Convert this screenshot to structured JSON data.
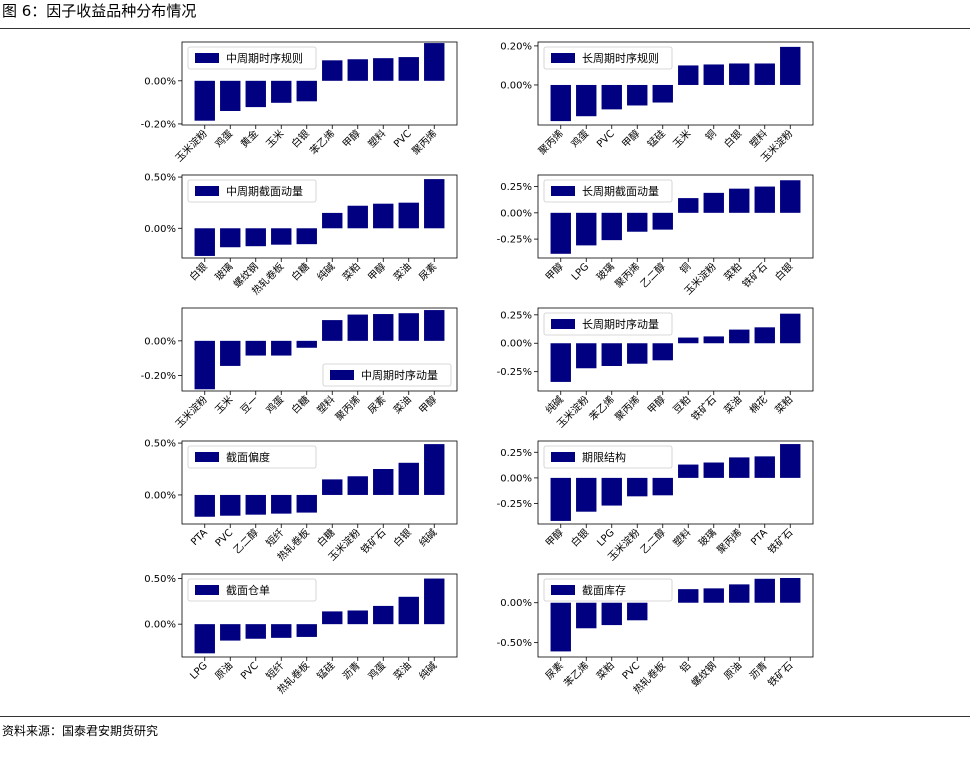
{
  "figure": {
    "title": "图 6：因子收益品种分布情况",
    "source": "资料来源：国泰君安期货研究"
  },
  "colors": {
    "bar": "#000080",
    "axis": "#000000"
  },
  "chart_data": [
    {
      "type": "bar",
      "legend": "中周期时序规则",
      "legend_position": "upper-left",
      "categories": [
        "玉米淀粉",
        "鸡蛋",
        "黄金",
        "玉米",
        "白银",
        "苯乙烯",
        "甲醇",
        "塑料",
        "PVC",
        "聚丙烯"
      ],
      "values": [
        -0.00185,
        -0.0014,
        -0.00122,
        -0.00102,
        -0.00095,
        0.00095,
        0.001,
        0.00105,
        0.0011,
        0.00175
      ],
      "yticks": [
        -0.002,
        0.0
      ],
      "ytick_labels": [
        "-0.20%",
        "0.00%"
      ],
      "ylim": [
        -0.00205,
        0.0018
      ]
    },
    {
      "type": "bar",
      "legend": "长周期时序规则",
      "legend_position": "upper-left",
      "categories": [
        "聚丙烯",
        "鸡蛋",
        "PVC",
        "甲醇",
        "锰硅",
        "玉米",
        "铜",
        "白银",
        "塑料",
        "玉米淀粉"
      ],
      "values": [
        -0.00185,
        -0.0016,
        -0.00125,
        -0.00105,
        -0.0009,
        0.001,
        0.00105,
        0.0011,
        0.0011,
        0.00195
      ],
      "yticks": [
        0.0,
        0.002
      ],
      "ytick_labels": [
        "0.00%",
        "0.20%"
      ],
      "ylim": [
        -0.00205,
        0.0022
      ]
    },
    {
      "type": "bar",
      "legend": "中周期截面动量",
      "legend_position": "upper-left",
      "categories": [
        "白银",
        "玻璃",
        "螺纹钢",
        "热轧卷板",
        "白糖",
        "纯碱",
        "菜粕",
        "甲醇",
        "菜油",
        "尿素"
      ],
      "values": [
        -0.0027,
        -0.00185,
        -0.00175,
        -0.0016,
        -0.00155,
        0.0015,
        0.0022,
        0.0024,
        0.0025,
        0.0048
      ],
      "yticks": [
        0.0,
        0.005
      ],
      "ytick_labels": [
        "0.00%",
        "0.50%"
      ],
      "ylim": [
        -0.0029,
        0.0052
      ]
    },
    {
      "type": "bar",
      "legend": "长周期截面动量",
      "legend_position": "upper-left",
      "categories": [
        "甲醇",
        "LPG",
        "玻璃",
        "聚丙烯",
        "乙二醇",
        "铜",
        "玉米淀粉",
        "菜粕",
        "铁矿石",
        "白银"
      ],
      "values": [
        -0.0039,
        -0.0031,
        -0.0026,
        -0.0018,
        -0.0016,
        0.0014,
        0.0019,
        0.0023,
        0.0025,
        0.0031
      ],
      "yticks": [
        -0.0025,
        0.0,
        0.0025
      ],
      "ytick_labels": [
        "-0.25%",
        "0.00%",
        "0.25%"
      ],
      "ylim": [
        -0.0043,
        0.0036
      ]
    },
    {
      "type": "bar",
      "legend": "中周期时序动量",
      "legend_position": "lower-right",
      "categories": [
        "玉米淀粉",
        "玉米",
        "豆一",
        "鸡蛋",
        "白糖",
        "塑料",
        "聚丙烯",
        "尿素",
        "菜油",
        "甲醇"
      ],
      "values": [
        -0.0028,
        -0.00145,
        -0.00085,
        -0.00085,
        -0.0004,
        0.0012,
        0.00152,
        0.00155,
        0.0016,
        0.00178
      ],
      "yticks": [
        -0.002,
        0.0
      ],
      "ytick_labels": [
        "-0.20%",
        "0.00%"
      ],
      "ylim": [
        -0.0029,
        0.0019
      ]
    },
    {
      "type": "bar",
      "legend": "长周期时序动量",
      "legend_position": "upper-left",
      "categories": [
        "纯碱",
        "玉米淀粉",
        "苯乙烯",
        "聚丙烯",
        "甲醇",
        "豆粕",
        "铁矿石",
        "菜油",
        "棉花",
        "菜粕"
      ],
      "values": [
        -0.0034,
        -0.0022,
        -0.002,
        -0.0018,
        -0.0015,
        0.0005,
        0.0006,
        0.0012,
        0.0014,
        0.0026
      ],
      "yticks": [
        -0.0025,
        0.0,
        0.0025
      ],
      "ytick_labels": [
        "-0.25%",
        "0.00%",
        "0.25%"
      ],
      "ylim": [
        -0.0042,
        0.0031
      ]
    },
    {
      "type": "bar",
      "legend": "截面偏度",
      "legend_position": "upper-left",
      "categories": [
        "PTA",
        "PVC",
        "乙二醇",
        "短纤",
        "热轧卷板",
        "白糖",
        "玉米淀粉",
        "铁矿石",
        "白银",
        "纯碱"
      ],
      "values": [
        -0.0021,
        -0.002,
        -0.0019,
        -0.0018,
        -0.0017,
        0.0015,
        0.0018,
        0.0025,
        0.0031,
        0.0049
      ],
      "yticks": [
        0.0,
        0.005
      ],
      "ytick_labels": [
        "0.00%",
        "0.50%"
      ],
      "ylim": [
        -0.0028,
        0.0052
      ]
    },
    {
      "type": "bar",
      "legend": "期限结构",
      "legend_position": "upper-left",
      "categories": [
        "甲醇",
        "白银",
        "LPG",
        "玉米淀粉",
        "乙二醇",
        "塑料",
        "玻璃",
        "聚丙烯",
        "PTA",
        "铁矿石"
      ],
      "values": [
        -0.0042,
        -0.0033,
        -0.0027,
        -0.0018,
        -0.0017,
        0.0013,
        0.0015,
        0.002,
        0.0021,
        0.0033
      ],
      "yticks": [
        -0.0025,
        0.0,
        0.0025
      ],
      "ytick_labels": [
        "-0.25%",
        "0.00%",
        "0.25%"
      ],
      "ylim": [
        -0.0045,
        0.0036
      ]
    },
    {
      "type": "bar",
      "legend": "截面仓单",
      "legend_position": "upper-left",
      "categories": [
        "LPG",
        "原油",
        "PVC",
        "短纤",
        "热轧卷板",
        "锰硅",
        "沥青",
        "鸡蛋",
        "菜油",
        "纯碱"
      ],
      "values": [
        -0.0032,
        -0.0018,
        -0.0016,
        -0.0015,
        -0.0014,
        0.0014,
        0.0015,
        0.002,
        0.003,
        0.005
      ],
      "yticks": [
        0.0,
        0.005
      ],
      "ytick_labels": [
        "0.00%",
        "0.50%"
      ],
      "ylim": [
        -0.0036,
        0.0055
      ]
    },
    {
      "type": "bar",
      "legend": "截面库存",
      "legend_position": "upper-left",
      "categories": [
        "尿素",
        "苯乙烯",
        "菜粕",
        "PVC",
        "热轧卷板",
        "铝",
        "螺纹钢",
        "原油",
        "沥青",
        "铁矿石"
      ],
      "values": [
        -0.0061,
        -0.0032,
        -0.0028,
        -0.0022,
        0.0,
        0.0017,
        0.0018,
        0.0023,
        0.003,
        0.0031
      ],
      "yticks": [
        -0.005,
        0.0
      ],
      "ytick_labels": [
        "-0.50%",
        "0.00%"
      ],
      "ylim": [
        -0.0068,
        0.0036
      ]
    }
  ]
}
